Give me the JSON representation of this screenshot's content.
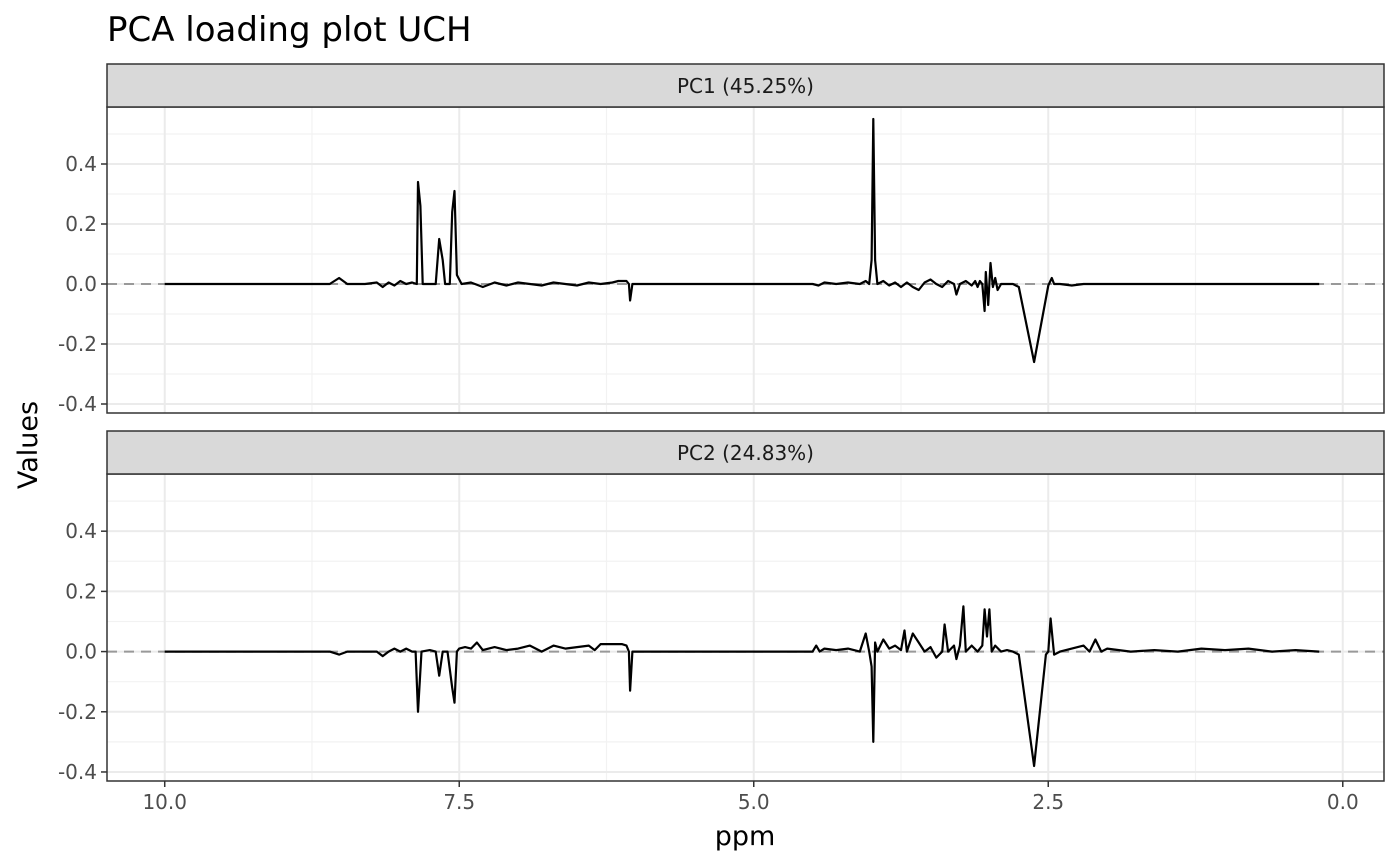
{
  "chart_data": {
    "type": "line",
    "title": "PCA loading plot UCH",
    "xlabel": "ppm",
    "ylabel": "Values",
    "xlim": [
      10.49,
      -0.35
    ],
    "x_reversed": true,
    "ylim": [
      -0.43,
      0.59
    ],
    "xticks": [
      10.0,
      7.5,
      5.0,
      2.5,
      0.0
    ],
    "xtick_labels": [
      "10.0",
      "7.5",
      "5.0",
      "2.5",
      "0.0"
    ],
    "yticks": [
      0.4,
      0.2,
      0.0,
      -0.2,
      -0.4
    ],
    "ytick_labels": [
      "0.4",
      "0.2",
      "0.0",
      "-0.2",
      "-0.4"
    ],
    "hline": {
      "y": 0,
      "style": "dashed",
      "color": "#999999"
    },
    "grid": true,
    "theme": "bw",
    "line_color": "#000000",
    "panels": [
      {
        "name": "PC1 (45.25%)",
        "points": [
          [
            10.0,
            0.0
          ],
          [
            9.5,
            0.0
          ],
          [
            9.0,
            0.0
          ],
          [
            8.6,
            0.0
          ],
          [
            8.52,
            0.02
          ],
          [
            8.45,
            0.0
          ],
          [
            8.3,
            0.0
          ],
          [
            8.2,
            0.005
          ],
          [
            8.15,
            -0.01
          ],
          [
            8.1,
            0.005
          ],
          [
            8.05,
            -0.005
          ],
          [
            8.0,
            0.01
          ],
          [
            7.95,
            0.0
          ],
          [
            7.9,
            0.005
          ],
          [
            7.86,
            0.0
          ],
          [
            7.85,
            0.34
          ],
          [
            7.83,
            0.26
          ],
          [
            7.81,
            0.0
          ],
          [
            7.75,
            0.0
          ],
          [
            7.7,
            0.0
          ],
          [
            7.67,
            0.15
          ],
          [
            7.64,
            0.08
          ],
          [
            7.62,
            0.0
          ],
          [
            7.58,
            0.0
          ],
          [
            7.56,
            0.24
          ],
          [
            7.54,
            0.31
          ],
          [
            7.52,
            0.03
          ],
          [
            7.48,
            0.0
          ],
          [
            7.4,
            0.005
          ],
          [
            7.3,
            -0.01
          ],
          [
            7.2,
            0.005
          ],
          [
            7.1,
            -0.005
          ],
          [
            7.0,
            0.005
          ],
          [
            6.9,
            0.0
          ],
          [
            6.8,
            -0.005
          ],
          [
            6.7,
            0.005
          ],
          [
            6.6,
            0.0
          ],
          [
            6.5,
            -0.005
          ],
          [
            6.4,
            0.005
          ],
          [
            6.3,
            0.0
          ],
          [
            6.2,
            0.005
          ],
          [
            6.15,
            0.01
          ],
          [
            6.08,
            0.01
          ],
          [
            6.06,
            0.0
          ],
          [
            6.05,
            -0.055
          ],
          [
            6.03,
            0.0
          ],
          [
            6.0,
            0.0
          ],
          [
            5.5,
            0.0
          ],
          [
            5.0,
            0.0
          ],
          [
            4.5,
            0.0
          ],
          [
            4.45,
            -0.005
          ],
          [
            4.4,
            0.005
          ],
          [
            4.3,
            0.0
          ],
          [
            4.2,
            0.005
          ],
          [
            4.1,
            0.0
          ],
          [
            4.05,
            0.01
          ],
          [
            4.02,
            0.0
          ],
          [
            4.0,
            0.08
          ],
          [
            3.985,
            0.55
          ],
          [
            3.97,
            0.08
          ],
          [
            3.95,
            0.0
          ],
          [
            3.9,
            0.01
          ],
          [
            3.85,
            -0.005
          ],
          [
            3.8,
            0.005
          ],
          [
            3.75,
            -0.01
          ],
          [
            3.7,
            0.005
          ],
          [
            3.65,
            -0.01
          ],
          [
            3.6,
            -0.02
          ],
          [
            3.55,
            0.005
          ],
          [
            3.5,
            0.015
          ],
          [
            3.45,
            0.0
          ],
          [
            3.4,
            -0.01
          ],
          [
            3.35,
            0.01
          ],
          [
            3.3,
            0.0
          ],
          [
            3.28,
            -0.035
          ],
          [
            3.25,
            0.0
          ],
          [
            3.2,
            0.01
          ],
          [
            3.15,
            -0.005
          ],
          [
            3.12,
            0.01
          ],
          [
            3.1,
            -0.01
          ],
          [
            3.08,
            0.01
          ],
          [
            3.06,
            0.0
          ],
          [
            3.04,
            -0.09
          ],
          [
            3.03,
            0.04
          ],
          [
            3.01,
            -0.07
          ],
          [
            2.99,
            0.07
          ],
          [
            2.97,
            -0.01
          ],
          [
            2.95,
            0.02
          ],
          [
            2.93,
            -0.02
          ],
          [
            2.9,
            0.0
          ],
          [
            2.8,
            0.0
          ],
          [
            2.75,
            -0.01
          ],
          [
            2.62,
            -0.26
          ],
          [
            2.5,
            -0.005
          ],
          [
            2.47,
            0.02
          ],
          [
            2.45,
            0.0
          ],
          [
            2.4,
            0.0
          ],
          [
            2.3,
            -0.005
          ],
          [
            2.2,
            0.0
          ],
          [
            2.0,
            0.0
          ],
          [
            1.5,
            0.0
          ],
          [
            1.0,
            0.0
          ],
          [
            0.5,
            0.0
          ],
          [
            0.2,
            0.0
          ]
        ]
      },
      {
        "name": "PC2 (24.83%)",
        "points": [
          [
            10.0,
            0.0
          ],
          [
            9.5,
            0.0
          ],
          [
            9.0,
            0.0
          ],
          [
            8.6,
            0.0
          ],
          [
            8.52,
            -0.01
          ],
          [
            8.45,
            0.0
          ],
          [
            8.3,
            0.0
          ],
          [
            8.2,
            0.0
          ],
          [
            8.15,
            -0.015
          ],
          [
            8.1,
            0.0
          ],
          [
            8.05,
            0.01
          ],
          [
            8.0,
            0.0
          ],
          [
            7.95,
            0.01
          ],
          [
            7.9,
            0.0
          ],
          [
            7.87,
            0.0
          ],
          [
            7.85,
            -0.2
          ],
          [
            7.82,
            0.0
          ],
          [
            7.75,
            0.005
          ],
          [
            7.7,
            0.0
          ],
          [
            7.67,
            -0.08
          ],
          [
            7.64,
            0.0
          ],
          [
            7.6,
            0.0
          ],
          [
            7.56,
            -0.12
          ],
          [
            7.54,
            -0.17
          ],
          [
            7.52,
            0.0
          ],
          [
            7.5,
            0.01
          ],
          [
            7.45,
            0.015
          ],
          [
            7.4,
            0.01
          ],
          [
            7.35,
            0.03
          ],
          [
            7.3,
            0.005
          ],
          [
            7.2,
            0.015
          ],
          [
            7.1,
            0.005
          ],
          [
            7.0,
            0.01
          ],
          [
            6.9,
            0.02
          ],
          [
            6.8,
            0.0
          ],
          [
            6.7,
            0.02
          ],
          [
            6.6,
            0.01
          ],
          [
            6.5,
            0.015
          ],
          [
            6.4,
            0.02
          ],
          [
            6.35,
            0.005
          ],
          [
            6.3,
            0.025
          ],
          [
            6.2,
            0.025
          ],
          [
            6.12,
            0.025
          ],
          [
            6.08,
            0.02
          ],
          [
            6.06,
            0.0
          ],
          [
            6.05,
            -0.13
          ],
          [
            6.03,
            0.0
          ],
          [
            6.0,
            0.0
          ],
          [
            5.5,
            0.0
          ],
          [
            5.0,
            0.0
          ],
          [
            4.5,
            0.0
          ],
          [
            4.47,
            0.02
          ],
          [
            4.44,
            0.0
          ],
          [
            4.4,
            0.01
          ],
          [
            4.3,
            0.005
          ],
          [
            4.2,
            0.01
          ],
          [
            4.1,
            0.0
          ],
          [
            4.05,
            0.06
          ],
          [
            4.02,
            0.0
          ],
          [
            4.0,
            -0.05
          ],
          [
            3.985,
            -0.3
          ],
          [
            3.97,
            0.03
          ],
          [
            3.95,
            0.0
          ],
          [
            3.9,
            0.04
          ],
          [
            3.85,
            0.01
          ],
          [
            3.8,
            0.02
          ],
          [
            3.75,
            0.005
          ],
          [
            3.72,
            0.07
          ],
          [
            3.7,
            0.0
          ],
          [
            3.65,
            0.06
          ],
          [
            3.6,
            0.03
          ],
          [
            3.55,
            0.0
          ],
          [
            3.5,
            0.015
          ],
          [
            3.45,
            -0.02
          ],
          [
            3.4,
            0.0
          ],
          [
            3.38,
            0.09
          ],
          [
            3.35,
            0.0
          ],
          [
            3.3,
            0.02
          ],
          [
            3.28,
            -0.025
          ],
          [
            3.25,
            0.02
          ],
          [
            3.22,
            0.15
          ],
          [
            3.2,
            0.0
          ],
          [
            3.15,
            0.02
          ],
          [
            3.1,
            0.0
          ],
          [
            3.06,
            0.02
          ],
          [
            3.04,
            0.14
          ],
          [
            3.02,
            0.05
          ],
          [
            3.0,
            0.14
          ],
          [
            2.98,
            0.0
          ],
          [
            2.95,
            0.02
          ],
          [
            2.9,
            0.0
          ],
          [
            2.85,
            0.005
          ],
          [
            2.8,
            0.0
          ],
          [
            2.75,
            -0.01
          ],
          [
            2.62,
            -0.38
          ],
          [
            2.52,
            -0.01
          ],
          [
            2.5,
            0.0
          ],
          [
            2.48,
            0.11
          ],
          [
            2.45,
            -0.01
          ],
          [
            2.4,
            0.0
          ],
          [
            2.3,
            0.01
          ],
          [
            2.2,
            0.02
          ],
          [
            2.15,
            0.0
          ],
          [
            2.1,
            0.04
          ],
          [
            2.05,
            0.0
          ],
          [
            2.0,
            0.01
          ],
          [
            1.8,
            0.0
          ],
          [
            1.6,
            0.005
          ],
          [
            1.4,
            0.0
          ],
          [
            1.2,
            0.01
          ],
          [
            1.0,
            0.005
          ],
          [
            0.8,
            0.01
          ],
          [
            0.6,
            0.0
          ],
          [
            0.4,
            0.005
          ],
          [
            0.2,
            0.0
          ]
        ]
      }
    ]
  }
}
